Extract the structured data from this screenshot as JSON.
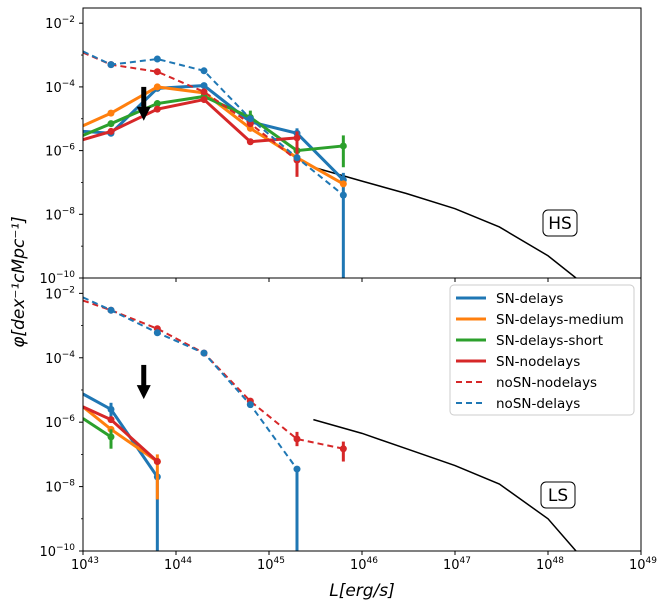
{
  "colors": {
    "SN-delays": "#1f77b4",
    "SN-delays-medium": "#ff7f0e",
    "SN-delays-short": "#2ca02c",
    "SN-nodelays": "#d62728",
    "noSN-nodelays": "#d62728",
    "noSN-delays": "#1f77b4",
    "reference": "#000000"
  },
  "chart_data": [
    {
      "type": "line",
      "panel_label": "HS",
      "xscale": "log",
      "yscale": "log",
      "xlim": [
        1e+43,
        1e+49
      ],
      "ylim": [
        1e-10,
        0.03
      ],
      "xlabel": "L[erg/s]",
      "ylabel": "φ[dex⁻¹cMpc⁻¹]",
      "x": [
        2e+43,
        6.3e+43,
        2e+44,
        6.3e+44,
        2e+45,
        6.3e+45
      ],
      "series": [
        {
          "name": "SN-delays",
          "style": "solid",
          "x": [
            1e+43,
            2e+43,
            6.3e+43,
            2e+44,
            6.3e+44,
            2e+45,
            6.3e+45
          ],
          "values": [
            4e-06,
            3.5e-06,
            9e-05,
            0.00011,
            8e-06,
            3.5e-06,
            1.2e-07
          ],
          "errors": [
            null,
            null,
            null,
            null,
            [
              4e-06,
              1.2e-05
            ],
            [
              5e-07,
              5e-06
            ],
            [
              4e-08,
              2e-07
            ]
          ],
          "markers": [
            false,
            true,
            true,
            true,
            true,
            true,
            true
          ]
        },
        {
          "name": "SN-delays-medium",
          "style": "solid",
          "x": [
            1e+43,
            2e+43,
            6.3e+43,
            2e+44,
            6.3e+44,
            2e+45,
            6.3e+45
          ],
          "values": [
            6e-06,
            1.5e-05,
            0.0001,
            6.5e-05,
            5e-06,
            6e-07,
            9e-08
          ],
          "errors": [
            null,
            null,
            null,
            null,
            null,
            null,
            null
          ],
          "markers": [
            false,
            true,
            true,
            true,
            true,
            true,
            true
          ]
        },
        {
          "name": "SN-delays-short",
          "style": "solid",
          "x": [
            1e+43,
            2e+43,
            6.3e+43,
            2e+44,
            6.3e+44,
            2e+45,
            6.3e+45
          ],
          "values": [
            3e-06,
            7e-06,
            3e-05,
            5e-05,
            1.1e-05,
            1e-06,
            1.4e-06
          ],
          "errors": [
            null,
            null,
            null,
            null,
            [
              7e-06,
              1.8e-05
            ],
            null,
            [
              3e-07,
              3e-06
            ]
          ],
          "markers": [
            false,
            true,
            true,
            true,
            true,
            true,
            true
          ]
        },
        {
          "name": "SN-nodelays",
          "style": "solid",
          "x": [
            1e+43,
            2e+43,
            6.3e+43,
            2e+44,
            6.3e+44,
            2e+45
          ],
          "values": [
            2.2e-06,
            4e-06,
            2e-05,
            4e-05,
            1.9e-06,
            2.5e-06
          ],
          "errors": [
            null,
            null,
            null,
            null,
            null,
            [
              1.5e-07,
              4e-06
            ]
          ],
          "markers": [
            false,
            true,
            true,
            true,
            true,
            true
          ]
        },
        {
          "name": "noSN-nodelays",
          "style": "dashed",
          "x": [
            1e+43,
            2e+43,
            6.3e+43,
            2e+44,
            6.3e+44,
            2e+45
          ],
          "values": [
            0.0012,
            0.0005,
            0.0003,
            7e-05,
            7e-06,
            5e-07
          ],
          "errors": [
            null,
            null,
            null,
            null,
            null,
            null
          ],
          "markers": [
            false,
            true,
            true,
            true,
            true,
            true
          ]
        },
        {
          "name": "noSN-delays",
          "style": "dashed",
          "x": [
            1e+43,
            2e+43,
            6.3e+43,
            2e+44,
            6.3e+44,
            2e+45,
            6.3e+45
          ],
          "values": [
            0.0013,
            0.0005,
            0.00075,
            0.00032,
            1e-05,
            6e-07,
            4e-08
          ],
          "errors": [
            null,
            null,
            null,
            null,
            null,
            null,
            [
              1e-10,
              4e-08
            ]
          ],
          "markers": [
            false,
            true,
            true,
            true,
            true,
            true,
            true
          ]
        }
      ],
      "reference_curve": {
        "x": [
          3e+45,
          1e+46,
          3e+46,
          1e+47,
          3e+47,
          1e+48,
          2e+48
        ],
        "values": [
          3e-07,
          1.1e-07,
          4.5e-08,
          1.5e-08,
          4e-09,
          5e-10,
          1e-10
        ]
      },
      "arrow_x": 4.5e+43,
      "arrow_y": [
        0.0001,
        1e-05
      ]
    },
    {
      "type": "line",
      "panel_label": "LS",
      "xscale": "log",
      "yscale": "log",
      "xlim": [
        1e+43,
        1e+49
      ],
      "ylim": [
        1e-10,
        0.03
      ],
      "xlabel": "L[erg/s]",
      "ylabel": "φ[dex⁻¹cMpc⁻¹]",
      "x": [
        2e+43,
        6.3e+43,
        2e+44,
        6.3e+44,
        2e+45,
        6.3e+45
      ],
      "series": [
        {
          "name": "SN-delays",
          "style": "solid",
          "x": [
            1e+43,
            2e+43,
            6.3e+43
          ],
          "values": [
            7.5e-06,
            2.5e-06,
            2e-08
          ],
          "errors": [
            null,
            [
              1.2e-06,
              4e-06
            ],
            [
              1e-10,
              2e-08
            ]
          ],
          "markers": [
            false,
            true,
            true
          ]
        },
        {
          "name": "SN-delays-medium",
          "style": "solid",
          "x": [
            1e+43,
            2e+43,
            6.3e+43
          ],
          "values": [
            3e-06,
            6e-07,
            6e-08
          ],
          "errors": [
            null,
            null,
            [
              4e-09,
              1e-07
            ]
          ],
          "markers": [
            false,
            true,
            true
          ]
        },
        {
          "name": "SN-delays-short",
          "style": "solid",
          "x": [
            1e+43,
            2e+43
          ],
          "values": [
            1.3e-06,
            3.5e-07
          ],
          "errors": [
            null,
            [
              1.5e-07,
              6e-07
            ]
          ],
          "markers": [
            false,
            true
          ]
        },
        {
          "name": "SN-nodelays",
          "style": "solid",
          "x": [
            1e+43,
            2e+43,
            6.3e+43
          ],
          "values": [
            3e-06,
            1.2e-06,
            6e-08
          ],
          "errors": [
            null,
            null,
            null
          ],
          "markers": [
            false,
            true,
            true
          ]
        },
        {
          "name": "noSN-nodelays",
          "style": "dashed",
          "x": [
            1e+43,
            2e+43,
            6.3e+43,
            2e+44,
            6.3e+44,
            2e+45,
            6.3e+45
          ],
          "values": [
            0.006,
            0.003,
            0.0008,
            0.00014,
            4.5e-06,
            3e-07,
            1.5e-07
          ],
          "errors": [
            null,
            null,
            null,
            null,
            null,
            [
              1.8e-07,
              5e-07
            ],
            [
              6e-08,
              2.5e-07
            ]
          ],
          "markers": [
            false,
            true,
            true,
            true,
            true,
            true,
            true
          ]
        },
        {
          "name": "noSN-delays",
          "style": "dashed",
          "x": [
            1e+43,
            2e+43,
            6.3e+43,
            2e+44,
            6.3e+44,
            2e+45
          ],
          "values": [
            0.0075,
            0.003,
            0.0006,
            0.00014,
            3.5e-06,
            3.5e-08
          ],
          "errors": [
            null,
            null,
            null,
            null,
            null,
            [
              1e-10,
              3.5e-08
            ]
          ],
          "markers": [
            false,
            true,
            true,
            true,
            true,
            true
          ]
        }
      ],
      "reference_curve": {
        "x": [
          3e+45,
          1e+46,
          3e+46,
          1e+47,
          3e+47,
          1e+48,
          2e+48
        ],
        "values": [
          1.2e-06,
          4.5e-07,
          1.5e-07,
          4.5e-08,
          1.2e-08,
          1e-09,
          1e-10
        ]
      },
      "arrow_x": 4.5e+43,
      "arrow_y": [
        6e-05,
        6e-06
      ]
    }
  ],
  "axes": {
    "xlabel": "L[erg/s]",
    "ylabel": "φ[dex⁻¹cMpc⁻¹]",
    "x_ticks": [
      {
        "exp": 43,
        "label": "10",
        "sup": "43"
      },
      {
        "exp": 44,
        "label": "10",
        "sup": "44"
      },
      {
        "exp": 45,
        "label": "10",
        "sup": "45"
      },
      {
        "exp": 46,
        "label": "10",
        "sup": "46"
      },
      {
        "exp": 47,
        "label": "10",
        "sup": "47"
      },
      {
        "exp": 48,
        "label": "10",
        "sup": "48"
      },
      {
        "exp": 49,
        "label": "10",
        "sup": "49"
      }
    ],
    "y_ticks": [
      {
        "exp": -2,
        "label": "10",
        "sup": "−2"
      },
      {
        "exp": -4,
        "label": "10",
        "sup": "−4"
      },
      {
        "exp": -6,
        "label": "10",
        "sup": "−6"
      },
      {
        "exp": -8,
        "label": "10",
        "sup": "−8"
      },
      {
        "exp": -10,
        "label": "10",
        "sup": "−10"
      }
    ]
  },
  "legend": {
    "entries": [
      {
        "name": "SN-delays",
        "style": "solid"
      },
      {
        "name": "SN-delays-medium",
        "style": "solid"
      },
      {
        "name": "SN-delays-short",
        "style": "solid"
      },
      {
        "name": "SN-nodelays",
        "style": "solid"
      },
      {
        "name": "noSN-nodelays",
        "style": "dashed"
      },
      {
        "name": "noSN-delays",
        "style": "dashed"
      }
    ]
  }
}
